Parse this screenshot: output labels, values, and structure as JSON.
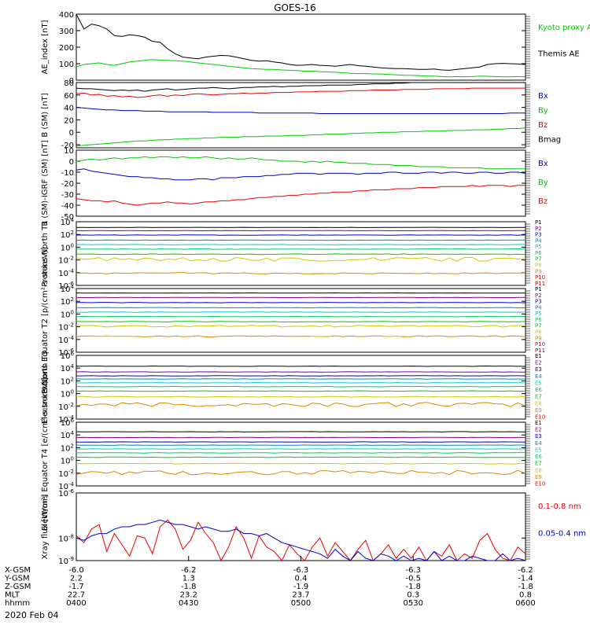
{
  "title": "GOES-16",
  "date_label": "2020 Feb 04",
  "colors": {
    "black": "#000000",
    "green": "#00cc00",
    "blue": "#0000cc",
    "red": "#ee0000",
    "p_colors": [
      "#000000",
      "#880088",
      "#0000cc",
      "#0088cc",
      "#00cccc",
      "#00cc66",
      "#00cc00",
      "#cccc00",
      "#dd8800",
      "#dd0000",
      "#aa0000"
    ],
    "e_colors": [
      "#000000",
      "#880088",
      "#0000cc",
      "#0088cc",
      "#00cccc",
      "#00cc66",
      "#00cc00",
      "#cccc00",
      "#dd8800",
      "#dd0000",
      "#aa0000"
    ]
  },
  "xaxis": {
    "rows": [
      {
        "label": "X-GSM",
        "values": [
          "-6.0",
          "-6.2",
          "-6.3",
          "-6.3",
          "-6.2"
        ]
      },
      {
        "label": "Y-GSM",
        "values": [
          "2.2",
          "1.3",
          "0.4",
          "-0.5",
          "-1.4"
        ]
      },
      {
        "label": "Z-GSM",
        "values": [
          "-1.7",
          "-1.8",
          "-1.9",
          "-1.8",
          "-1.8"
        ]
      },
      {
        "label": "MLT",
        "values": [
          "22.7",
          "23.2",
          "23.7",
          "0.3",
          "0.8"
        ]
      },
      {
        "label": "hhmm",
        "values": [
          "0400",
          "0430",
          "0500",
          "0530",
          "0600"
        ]
      }
    ]
  },
  "chart_data": [
    {
      "type": "line",
      "ylabel": "AE_index [nT]",
      "ylim": [
        0,
        400
      ],
      "ticks": [
        "0",
        "100",
        "200",
        "300",
        "400"
      ],
      "legend": [
        {
          "text": "Kyoto proxy AE",
          "color": "#00cc00"
        },
        {
          "text": "Themis AE",
          "color": "#000000"
        }
      ],
      "series": [
        {
          "name": "Themis AE",
          "color": "#000000",
          "values": [
            400,
            310,
            340,
            330,
            310,
            270,
            265,
            275,
            270,
            260,
            235,
            230,
            190,
            160,
            140,
            135,
            130,
            140,
            145,
            150,
            148,
            140,
            130,
            120,
            115,
            118,
            110,
            105,
            95,
            90,
            92,
            95,
            90,
            88,
            85,
            90,
            95,
            88,
            85,
            80,
            75,
            72,
            70,
            70,
            68,
            65,
            65,
            68,
            62,
            60,
            65,
            70,
            75,
            80,
            95,
            100,
            102,
            100,
            98,
            95
          ]
        },
        {
          "name": "Kyoto proxy AE",
          "color": "#00cc00",
          "values": [
            80,
            95,
            100,
            105,
            95,
            90,
            100,
            110,
            115,
            120,
            125,
            122,
            120,
            118,
            115,
            110,
            105,
            100,
            95,
            90,
            85,
            80,
            75,
            70,
            68,
            65,
            65,
            62,
            60,
            58,
            55,
            55,
            52,
            50,
            48,
            45,
            42,
            40,
            40,
            38,
            38,
            35,
            33,
            30,
            30,
            28,
            25,
            25,
            22,
            20,
            22,
            20,
            22,
            25,
            24,
            22,
            20,
            20,
            22,
            20
          ]
        }
      ]
    },
    {
      "type": "line",
      "ylabel": "B (SM) [nT]",
      "ylim": [
        -25,
        80
      ],
      "ticks": [
        "-20",
        "0",
        "20",
        "40",
        "60",
        "80"
      ],
      "legend": [
        {
          "text": "Bx",
          "color": "#0000cc"
        },
        {
          "text": "By",
          "color": "#00cc00"
        },
        {
          "text": "Bz",
          "color": "#ee0000"
        },
        {
          "text": "Bmag",
          "color": "#000000"
        }
      ],
      "series": [
        {
          "name": "Bmag",
          "color": "#000000",
          "values": [
            71,
            70,
            70,
            69,
            68,
            67,
            68,
            67,
            68,
            66,
            68,
            69,
            70,
            68,
            69,
            70,
            71,
            71,
            72,
            71,
            70,
            71,
            72,
            72,
            73,
            73,
            74,
            73,
            74,
            74,
            75,
            75,
            75,
            76,
            76,
            76,
            76,
            77,
            77,
            78,
            78,
            78,
            79,
            79,
            80,
            80,
            80,
            80,
            80,
            81,
            81,
            81,
            81,
            81,
            81,
            82,
            82,
            82,
            82,
            82
          ]
        },
        {
          "name": "Bz",
          "color": "#ee0000",
          "values": [
            62,
            63,
            60,
            61,
            58,
            59,
            57,
            58,
            56,
            57,
            59,
            60,
            58,
            60,
            59,
            61,
            62,
            61,
            60,
            61,
            62,
            62,
            63,
            62,
            63,
            63,
            64,
            64,
            64,
            65,
            65,
            65,
            66,
            66,
            66,
            66,
            67,
            67,
            67,
            68,
            68,
            68,
            68,
            69,
            69,
            69,
            69,
            70,
            70,
            70,
            70,
            70,
            71,
            71,
            71,
            71,
            71,
            71,
            71,
            71
          ]
        },
        {
          "name": "Bx",
          "color": "#0000cc",
          "values": [
            40,
            39,
            38,
            37,
            36,
            36,
            35,
            35,
            35,
            34,
            34,
            34,
            33,
            33,
            33,
            33,
            33,
            33,
            32,
            32,
            32,
            32,
            32,
            32,
            31,
            31,
            31,
            31,
            31,
            31,
            31,
            31,
            30,
            30,
            30,
            30,
            30,
            30,
            30,
            30,
            30,
            30,
            30,
            30,
            30,
            30,
            30,
            30,
            30,
            30,
            30,
            30,
            30,
            30,
            30,
            30,
            30,
            31,
            31,
            31
          ]
        },
        {
          "name": "By",
          "color": "#00cc00",
          "values": [
            -22,
            -21,
            -20,
            -19,
            -18,
            -17,
            -16,
            -15,
            -14,
            -14,
            -13,
            -12,
            -12,
            -11,
            -11,
            -10,
            -10,
            -9,
            -9,
            -8,
            -8,
            -8,
            -7,
            -7,
            -7,
            -6,
            -6,
            -6,
            -5,
            -5,
            -5,
            -4,
            -4,
            -3,
            -3,
            -3,
            -2,
            -2,
            -1,
            -1,
            0,
            0,
            0,
            1,
            1,
            1,
            2,
            2,
            2,
            3,
            3,
            3,
            4,
            4,
            4,
            5,
            5,
            6,
            6,
            7
          ]
        }
      ]
    },
    {
      "type": "line",
      "ylabel": "B (SM)-IGRF (SM) [nT]",
      "ylim": [
        -50,
        10
      ],
      "ticks": [
        "-50",
        "-40",
        "-30",
        "-20",
        "-10",
        "0",
        "10"
      ],
      "legend": [
        {
          "text": "Bx",
          "color": "#0000cc"
        },
        {
          "text": "By",
          "color": "#00cc00"
        },
        {
          "text": "Bz",
          "color": "#ee0000"
        }
      ],
      "series": [
        {
          "name": "By",
          "color": "#00cc00",
          "values": [
            0,
            1,
            2,
            1,
            2,
            3,
            2,
            3,
            3,
            4,
            3,
            4,
            4,
            3,
            4,
            3,
            3,
            4,
            3,
            2,
            3,
            2,
            2,
            3,
            2,
            1,
            1,
            0,
            0,
            0,
            -1,
            0,
            -1,
            0,
            -1,
            -1,
            -2,
            -2,
            -2,
            -3,
            -3,
            -3,
            -4,
            -4,
            -4,
            -5,
            -5,
            -5,
            -5,
            -6,
            -6,
            -6,
            -6,
            -6,
            -7,
            -7,
            -7,
            -7,
            -7,
            -7
          ]
        },
        {
          "name": "Bx",
          "color": "#0000cc",
          "values": [
            -8,
            -7,
            -9,
            -10,
            -11,
            -12,
            -13,
            -14,
            -14,
            -15,
            -15,
            -16,
            -16,
            -17,
            -17,
            -17,
            -16,
            -16,
            -17,
            -15,
            -15,
            -15,
            -14,
            -14,
            -14,
            -13,
            -13,
            -12,
            -12,
            -11,
            -11,
            -11,
            -12,
            -11,
            -11,
            -11,
            -11,
            -12,
            -11,
            -11,
            -11,
            -10,
            -10,
            -11,
            -11,
            -11,
            -10,
            -10,
            -11,
            -10,
            -10,
            -11,
            -11,
            -10,
            -10,
            -11,
            -11,
            -10,
            -10,
            -11
          ]
        },
        {
          "name": "Bz",
          "color": "#ee0000",
          "values": [
            -34,
            -35,
            -36,
            -36,
            -37,
            -36,
            -38,
            -39,
            -40,
            -39,
            -38,
            -38,
            -37,
            -38,
            -38,
            -39,
            -38,
            -37,
            -37,
            -36,
            -36,
            -35,
            -35,
            -34,
            -33,
            -33,
            -32,
            -32,
            -31,
            -31,
            -30,
            -30,
            -29,
            -29,
            -28,
            -28,
            -28,
            -27,
            -27,
            -26,
            -26,
            -26,
            -25,
            -25,
            -25,
            -24,
            -24,
            -24,
            -23,
            -23,
            -23,
            -23,
            -22,
            -23,
            -22,
            -22,
            -22,
            -23,
            -22,
            -22
          ]
        }
      ]
    },
    {
      "type": "line",
      "scale": "log",
      "ylabel": "Protons North T1",
      "ylim": [
        -6,
        4
      ],
      "ticks": [
        "10^-6",
        "10^-4",
        "10^-2",
        "10^0",
        "10^2",
        "10^4"
      ],
      "channels": [
        "P1",
        "P2",
        "P3",
        "P4",
        "P5",
        "P6",
        "P7",
        "P8",
        "P9",
        "P10",
        "P11"
      ],
      "levels": [
        3.1,
        2.6,
        1.9,
        1.1,
        0.4,
        -0.3,
        -1.1,
        -1.9,
        -4.1,
        null,
        null
      ],
      "noise": [
        0.02,
        0.02,
        0.03,
        0.03,
        0.03,
        0.04,
        0.06,
        0.3,
        0.1,
        0,
        0
      ],
      "gap_segments": [
        [
          0.52,
          0.57
        ]
      ]
    },
    {
      "type": "line",
      "scale": "log",
      "ylabel": "Protons Equator T2 [p/(cm²-s-sr-keV)]",
      "ylim": [
        -6,
        4
      ],
      "ticks": [
        "10^-6",
        "10^-4",
        "10^-2",
        "10^0",
        "10^2",
        "10^4"
      ],
      "channels": [
        "P1",
        "P2",
        "P3",
        "P4",
        "P5",
        "P6",
        "P7",
        "P8",
        "P9",
        "P10",
        "P11"
      ],
      "levels": [
        3.3,
        2.6,
        1.8,
        1.0,
        0.3,
        -0.4,
        -1.2,
        -1.9,
        -3.5,
        null,
        null
      ],
      "noise": [
        0.02,
        0.02,
        0.03,
        0.03,
        0.03,
        0.04,
        0.05,
        0.15,
        0.1,
        0,
        0
      ],
      "gap_segments": [
        [
          0.03,
          0.13
        ],
        [
          0.52,
          0.57
        ],
        [
          0.68,
          0.73
        ]
      ]
    },
    {
      "type": "line",
      "scale": "log",
      "ylabel": "Electrons North T3",
      "ylim": [
        -4,
        6
      ],
      "ticks": [
        "10^-4",
        "10^-2",
        "10^0",
        "10^2",
        "10^4",
        "10^6"
      ],
      "channels": [
        "E1",
        "E2",
        "E3",
        "E4",
        "E5",
        "E6",
        "E7",
        "E8",
        "E9",
        "E10"
      ],
      "levels": [
        4.3,
        3.4,
        2.8,
        2.3,
        1.7,
        1.1,
        0.4,
        -0.5,
        -1.7,
        null
      ],
      "noise": [
        0.03,
        0.03,
        0.03,
        0.03,
        0.03,
        0.04,
        0.05,
        0.06,
        0.35,
        0
      ]
    },
    {
      "type": "line",
      "scale": "log",
      "ylabel": "Electrons Equator T4 [e/(cm²-s-sr-keV)]",
      "ylim": [
        -4,
        6
      ],
      "ticks": [
        "10^-4",
        "10^-2",
        "10^0",
        "10^2",
        "10^4",
        "10^6"
      ],
      "channels": [
        "E1",
        "E2",
        "E3",
        "E4",
        "E5",
        "E6",
        "E7",
        "E8",
        "E9",
        "E10"
      ],
      "levels": [
        4.5,
        3.6,
        2.9,
        2.4,
        1.8,
        1.2,
        0.5,
        -0.5,
        -1.9,
        null
      ],
      "noise": [
        0.03,
        0.03,
        0.03,
        0.03,
        0.03,
        0.04,
        0.05,
        0.06,
        0.35,
        0
      ]
    },
    {
      "type": "line",
      "scale": "log",
      "ylabel": "Xray flux [W/m²]",
      "ylim": [
        -9,
        -6
      ],
      "ticks": [
        "10^-9",
        "10^-8",
        "10^-6"
      ],
      "legend": [
        {
          "text": "0.1-0.8 nm",
          "color": "#ee0000"
        },
        {
          "text": "0.05-0.4 nm",
          "color": "#0000cc"
        }
      ],
      "series": [
        {
          "name": "0.1-0.8 nm",
          "color": "#ee0000",
          "values": [
            -7.9,
            -8.2,
            -7.6,
            -7.4,
            -8.6,
            -7.8,
            -8.3,
            -8.8,
            -7.9,
            -8.0,
            -8.7,
            -7.5,
            -7.2,
            -7.6,
            -8.5,
            -8.1,
            -7.3,
            -7.8,
            -8.2,
            -9.0,
            -8.4,
            -7.5,
            -8.0,
            -8.9,
            -7.9,
            -8.4,
            -8.6,
            -9.0,
            -8.3,
            -8.7,
            -9.0,
            -8.4,
            -8.0,
            -8.8,
            -8.2,
            -8.6,
            -9.0,
            -8.5,
            -8.1,
            -9.0,
            -8.7,
            -8.3,
            -8.9,
            -8.5,
            -8.9,
            -8.4,
            -9.0,
            -8.6,
            -8.8,
            -8.3,
            -9.0,
            -8.7,
            -8.9,
            -8.1,
            -7.8,
            -8.5,
            -8.9,
            -9.0,
            -8.4,
            -8.7
          ]
        },
        {
          "name": "0.05-0.4 nm",
          "color": "#0000cc",
          "values": [
            -8.0,
            -8.1,
            -7.9,
            -7.8,
            -7.8,
            -7.6,
            -7.5,
            -7.5,
            -7.4,
            -7.4,
            -7.3,
            -7.2,
            -7.3,
            -7.4,
            -7.4,
            -7.5,
            -7.6,
            -7.5,
            -7.6,
            -7.7,
            -7.7,
            -7.6,
            -7.8,
            -7.8,
            -7.9,
            -7.8,
            -8.0,
            -8.2,
            -8.3,
            -8.4,
            -8.5,
            -8.6,
            -8.7,
            -8.9,
            -8.5,
            -8.8,
            -9.0,
            -8.6,
            -8.9,
            -9.0,
            -8.7,
            -8.8,
            -9.0,
            -8.8,
            -9.0,
            -8.9,
            -9.0,
            -8.6,
            -9.0,
            -8.8,
            -9.0,
            -9.0,
            -8.8,
            -8.9,
            -9.0,
            -9.0,
            -8.7,
            -9.0,
            -8.9,
            -9.0
          ]
        }
      ]
    }
  ]
}
